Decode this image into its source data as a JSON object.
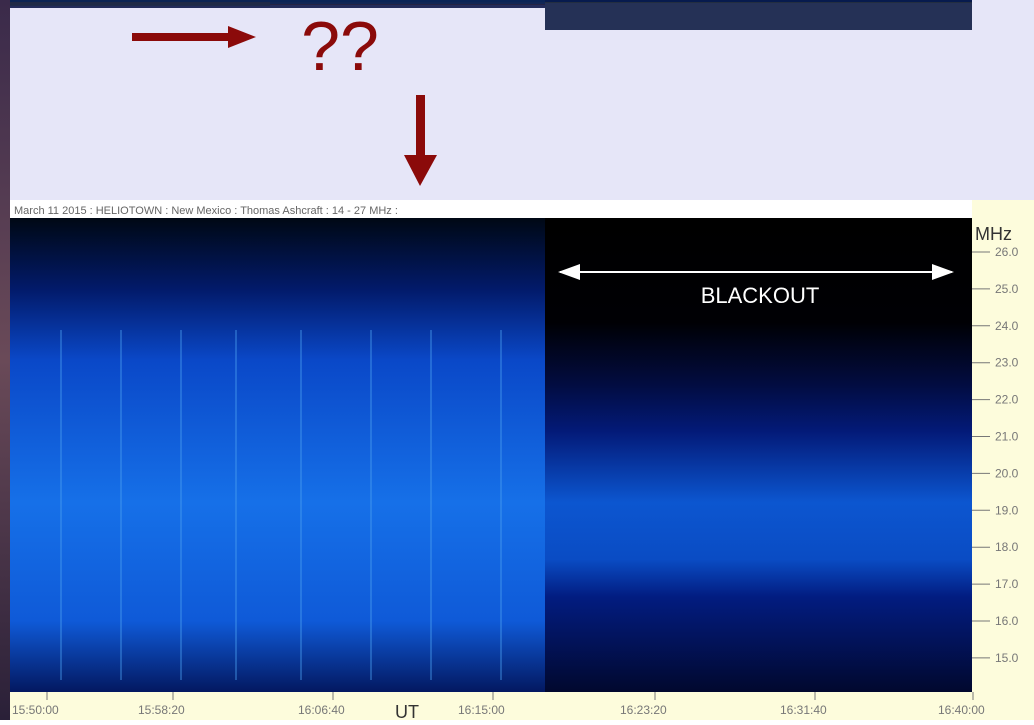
{
  "slide": {
    "annotation": "??"
  },
  "spectrogram": {
    "header": "March 11 2015  :  HELIOTOWN  :  New Mexico  :  Thomas Ashcraft  :  14 - 27 MHz  :",
    "blackout_label": "BLACKOUT",
    "unit": "MHz",
    "frequency_labels": [
      "26.0",
      "25.0",
      "24.0",
      "23.0",
      "22.0",
      "21.0",
      "20.0",
      "19.0",
      "18.0",
      "17.0",
      "16.0",
      "15.0"
    ],
    "time_labels": [
      "15:50:00",
      "15:58:20",
      "16:06:40",
      "16:15:00",
      "16:23:20",
      "16:31:40",
      "16:40:00"
    ],
    "time_axis_label": "UT"
  }
}
